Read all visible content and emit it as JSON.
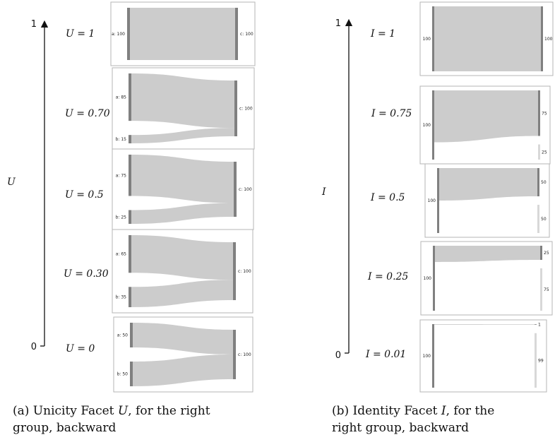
{
  "left": {
    "axis": {
      "variable": "U",
      "top_tick": "1",
      "bottom_tick": "0"
    },
    "caption": {
      "line1_prefix": "(a) Unicity Facet ",
      "variable": "U",
      "line1_suffix": ", for the right",
      "line2": "group, backward"
    },
    "panels": [
      {
        "label": "U = 1",
        "sources": [
          {
            "label": "a: 100",
            "value": 100
          }
        ],
        "target_label": "c: 100"
      },
      {
        "label": "U = 0.70",
        "sources": [
          {
            "label": "a: 85",
            "value": 85
          },
          {
            "label": "b: 15",
            "value": 15
          }
        ],
        "target_label": "c: 100"
      },
      {
        "label": "U = 0.5",
        "sources": [
          {
            "label": "a: 75",
            "value": 75
          },
          {
            "label": "b: 25",
            "value": 25
          }
        ],
        "target_label": "c: 100"
      },
      {
        "label": "U = 0.30",
        "sources": [
          {
            "label": "a: 65",
            "value": 65
          },
          {
            "label": "b: 35",
            "value": 35
          }
        ],
        "target_label": "c: 100"
      },
      {
        "label": "U = 0",
        "sources": [
          {
            "label": "a: 50",
            "value": 50
          },
          {
            "label": "b: 50",
            "value": 50
          }
        ],
        "target_label": "c: 100"
      }
    ]
  },
  "right": {
    "axis": {
      "variable": "I",
      "top_tick": "1",
      "bottom_tick": "0"
    },
    "caption": {
      "line1_prefix": "(b) Identity Facet ",
      "variable": "I",
      "line1_suffix": ", for the",
      "line2": "right group, backward"
    },
    "panels": [
      {
        "label": "I = 1",
        "source_label": "100",
        "targets": [
          {
            "label": "100",
            "value": 100
          }
        ]
      },
      {
        "label": "I = 0.75",
        "source_label": "100",
        "targets": [
          {
            "label": "75",
            "value": 75
          },
          {
            "label": "25",
            "value": 25
          }
        ]
      },
      {
        "label": "I = 0.5",
        "source_label": "100",
        "targets": [
          {
            "label": "50",
            "value": 50
          },
          {
            "label": "50",
            "value": 50
          }
        ]
      },
      {
        "label": "I = 0.25",
        "source_label": "100",
        "targets": [
          {
            "label": "25",
            "value": 25
          },
          {
            "label": "75",
            "value": 75
          }
        ]
      },
      {
        "label": "I = 0.01",
        "source_label": "100",
        "targets": [
          {
            "label": "1",
            "value": 1
          },
          {
            "label": "99",
            "value": 99
          }
        ]
      }
    ]
  }
}
